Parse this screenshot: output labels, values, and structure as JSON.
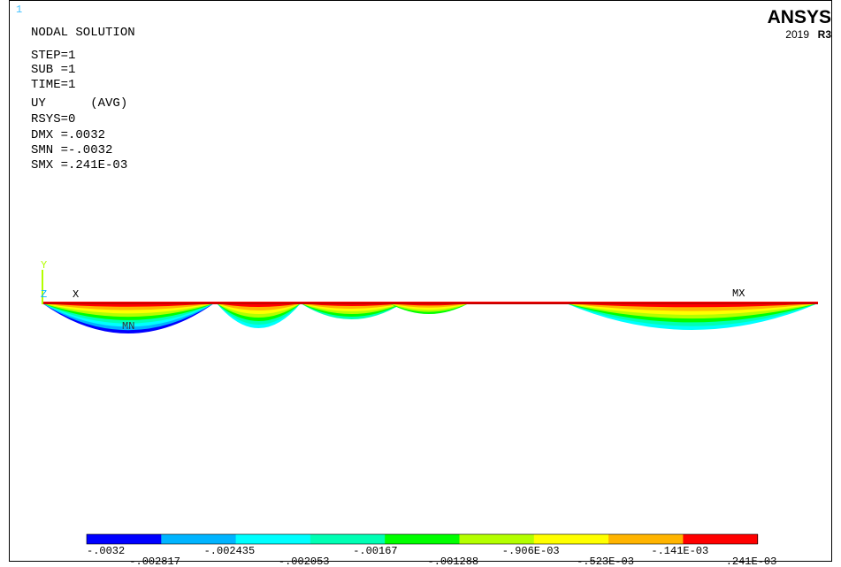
{
  "window_number": "1",
  "logo": {
    "brand": "ANSYS",
    "year": "2019",
    "release": "R3"
  },
  "title": "NODAL SOLUTION",
  "info": [
    "STEP=1",
    "SUB =1",
    "TIME=1",
    "UY      (AVG)",
    "RSYS=0",
    "DMX =.0032",
    "SMN =-.0032",
    "SMX =.241E-03"
  ],
  "triad": {
    "y": "Y",
    "z": "Z",
    "x": "X"
  },
  "markers": {
    "min": "MN",
    "max": "MX"
  },
  "legend": {
    "colors": [
      "#0000ff",
      "#00b4ff",
      "#00ffff",
      "#00ffb4",
      "#00ff00",
      "#b4ff00",
      "#ffff00",
      "#ffb400",
      "#ff0000"
    ],
    "labels": [
      "-.0032",
      "-.002817",
      "-.002435",
      "-.002053",
      "-.00167",
      "-.001288",
      "-.906E-03",
      "-.523E-03",
      "-.141E-03",
      ".241E-03"
    ]
  }
}
